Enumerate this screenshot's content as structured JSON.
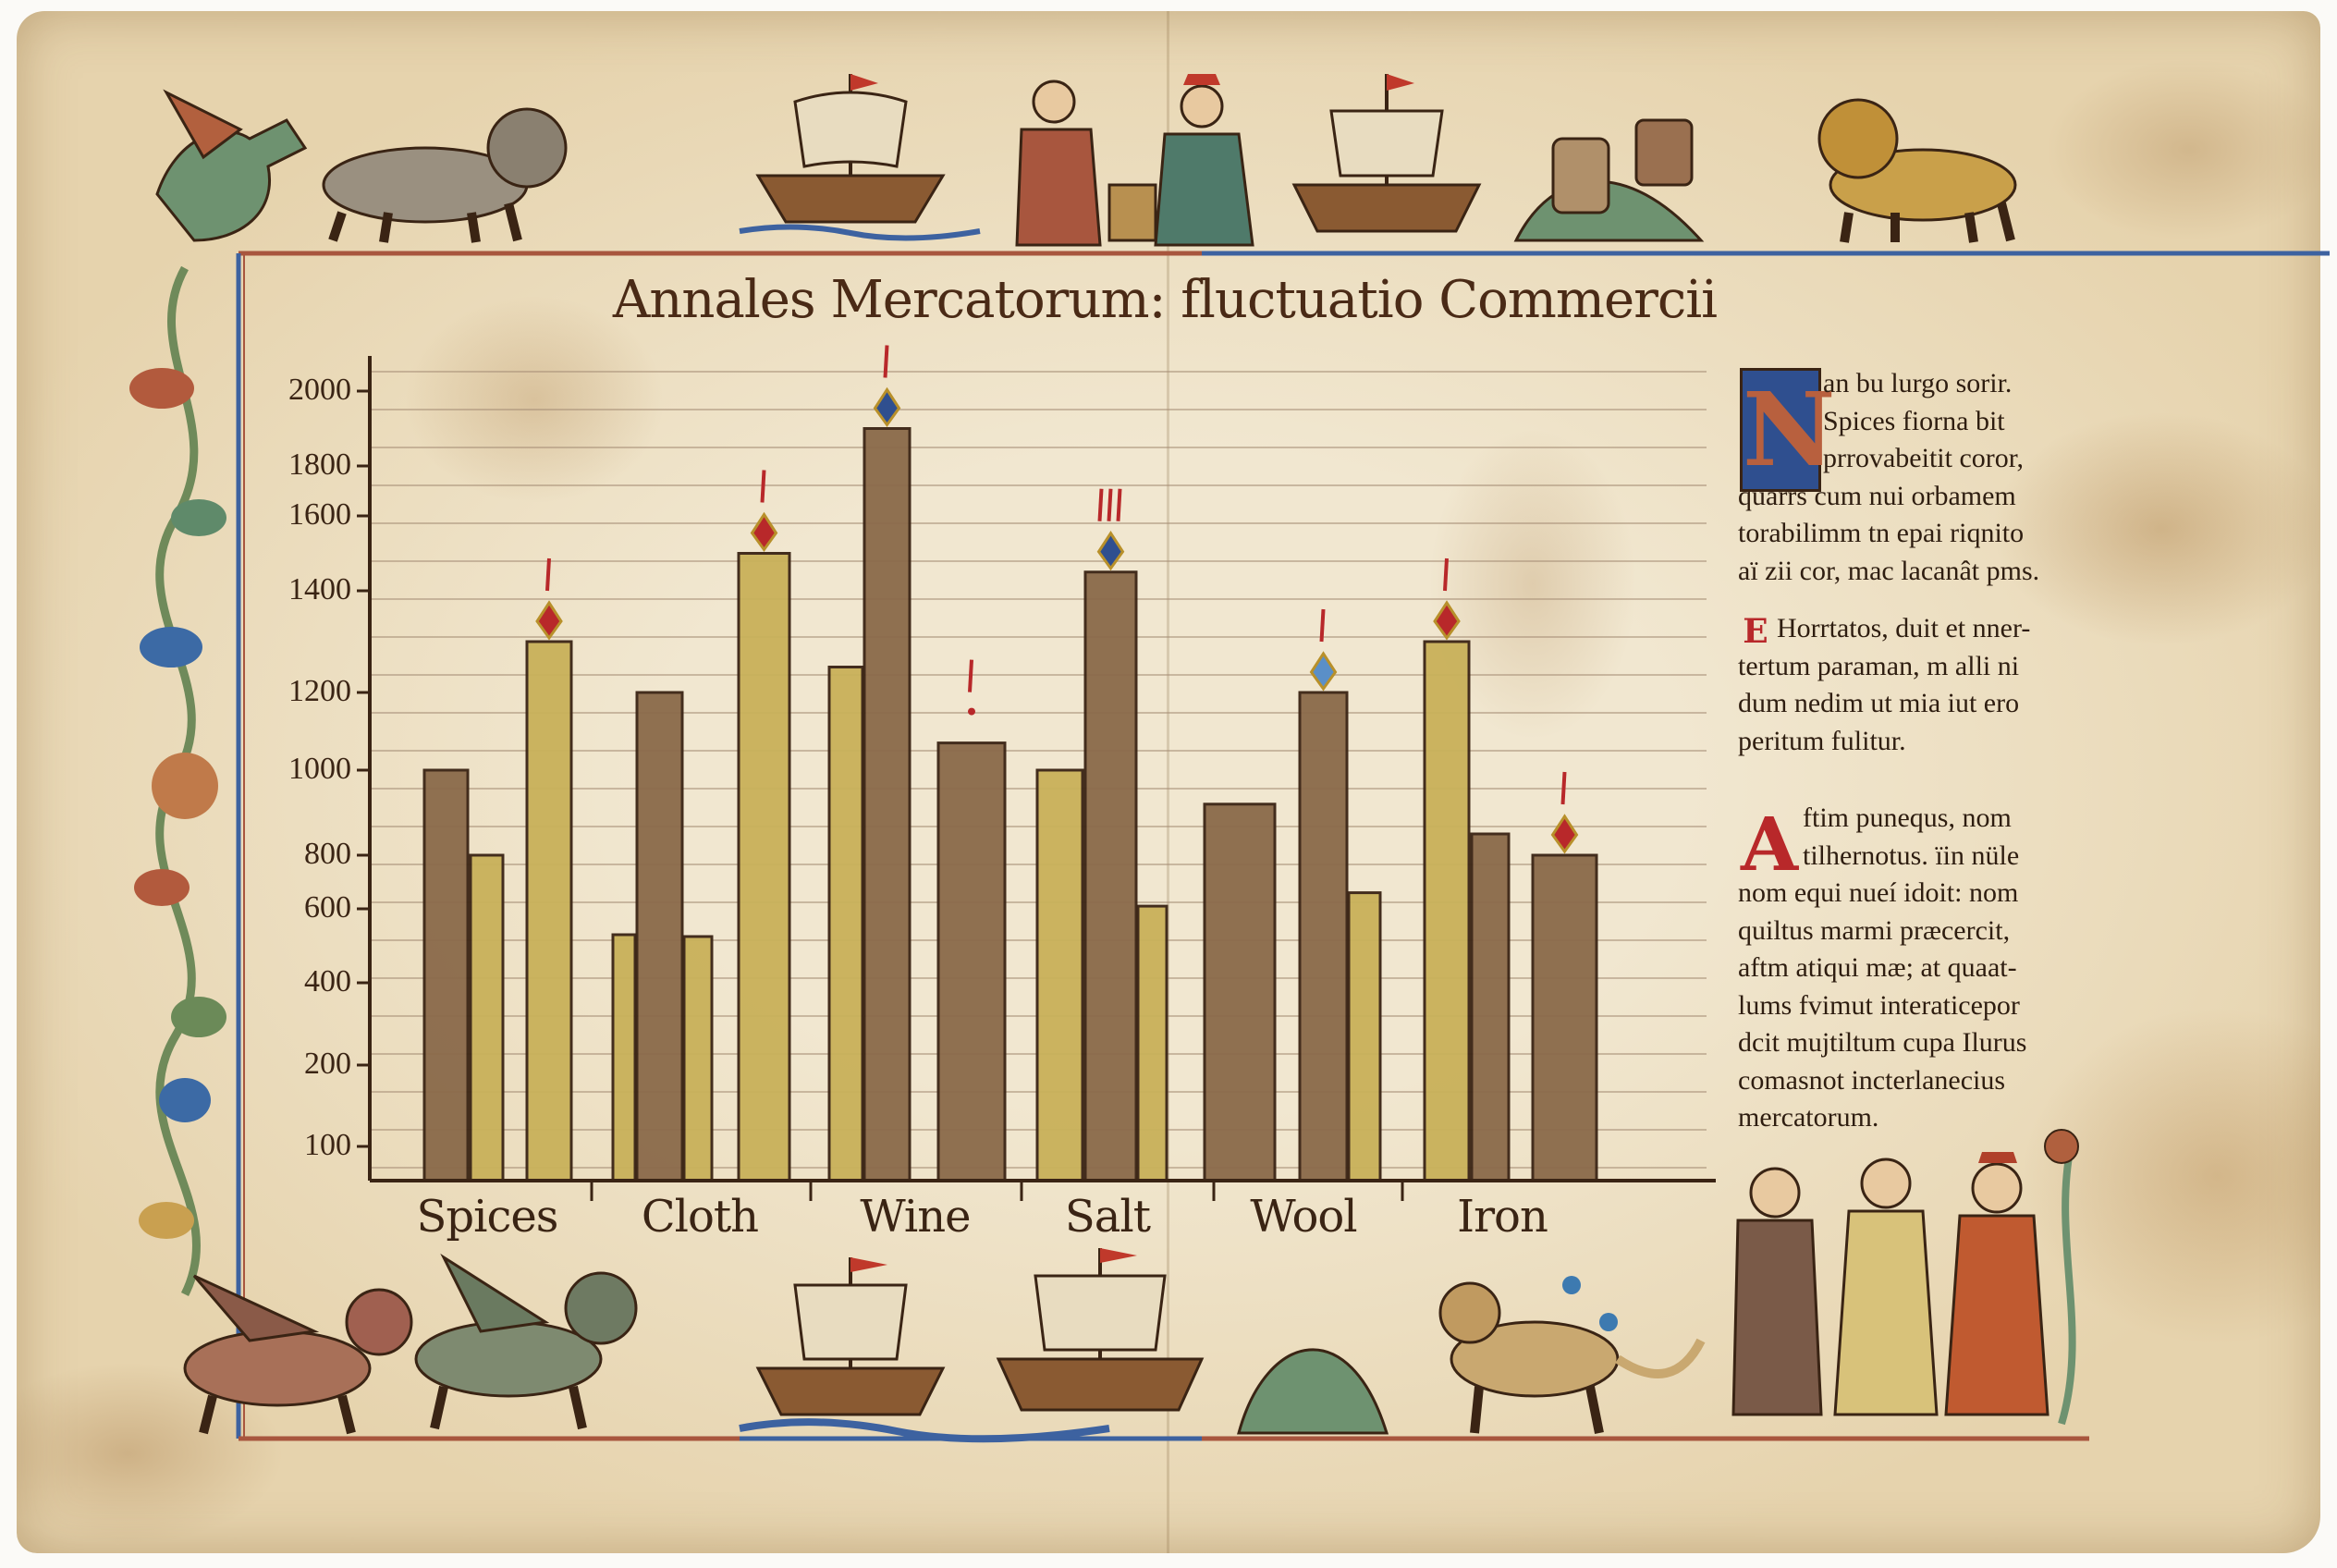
{
  "chart_data": {
    "type": "bar",
    "title": "Annales Mercatorum: fluctuatio Commercii",
    "xlabel": "",
    "ylabel": "",
    "categories": [
      "Spices",
      "Cloth",
      "Wine",
      "Salt",
      "Wool",
      "Iron"
    ],
    "y_ticks": [
      2000,
      1800,
      1600,
      1400,
      1200,
      1000,
      800,
      600,
      400,
      200,
      100
    ],
    "ylim": [
      0,
      2000
    ],
    "y_scale": "irregular tick spacing",
    "grid": "horizontal ruled lines",
    "legend": "none",
    "bars": [
      {
        "category": "Spices",
        "value": 1000,
        "color": "brown"
      },
      {
        "category": "Spices",
        "value": 800,
        "color": "gold"
      },
      {
        "category": "Spices",
        "value": 1300,
        "color": "gold",
        "marker": {
          "gem": "red",
          "strokes": 1
        }
      },
      {
        "category": "Cloth",
        "value": 530,
        "color": "gold"
      },
      {
        "category": "Cloth",
        "value": 1200,
        "color": "brown"
      },
      {
        "category": "Cloth",
        "value": 525,
        "color": "gold"
      },
      {
        "category": "Cloth",
        "value": 1500,
        "color": "gold",
        "marker": {
          "gem": "red",
          "strokes": 1
        }
      },
      {
        "category": "Wine",
        "value": 1250,
        "color": "gold"
      },
      {
        "category": "Wine",
        "value": 1900,
        "color": "brown",
        "marker": {
          "gem": "blue",
          "strokes": 1
        }
      },
      {
        "category": "Wine",
        "value": 1070,
        "color": "brown",
        "marker": {
          "gem": "none",
          "strokes": 1,
          "dot": true
        }
      },
      {
        "category": "Salt",
        "value": 1000,
        "color": "gold"
      },
      {
        "category": "Salt",
        "value": 1450,
        "color": "brown",
        "marker": {
          "gem": "blue",
          "strokes": 3
        }
      },
      {
        "category": "Salt",
        "value": 610,
        "color": "gold"
      },
      {
        "category": "Wool",
        "value": 920,
        "color": "brown"
      },
      {
        "category": "Wool",
        "value": 1200,
        "color": "brown",
        "marker": {
          "gem": "lightblue",
          "strokes": 1
        }
      },
      {
        "category": "Wool",
        "value": 660,
        "color": "gold"
      },
      {
        "category": "Iron",
        "value": 1300,
        "color": "gold",
        "marker": {
          "gem": "red",
          "strokes": 1
        }
      },
      {
        "category": "Iron",
        "value": 850,
        "color": "brown"
      },
      {
        "category": "Iron",
        "value": 800,
        "color": "brown",
        "marker": {
          "gem": "red",
          "strokes": 1
        }
      }
    ]
  },
  "colors": {
    "brown": "#8a6a4a",
    "gold": "#c9b15a",
    "ink": "#3a2414",
    "rubric_red": "#b8282a",
    "lapis_blue": "#2f4f8f",
    "frame_blue": "#3d62a0",
    "frame_red": "#a8563e"
  },
  "text_column": {
    "paragraphs": [
      {
        "dropcap": "N",
        "dropcap_color": "#2f4f8f",
        "lines": [
          "an bu lurgo sorir.",
          "Spices fiorna bit",
          "prrovabeitit coror,",
          "quarrs cum nui orbamem",
          "torabilimm tn epai riqnito",
          "aï zii cor, mac lacanât pms."
        ]
      },
      {
        "dropcap": "E",
        "dropcap_color": "#b8282a",
        "lines": [
          "Horrtatos, duit et nner-",
          "tertum paraman, m alli ni",
          "dum nedim ut mia iut ero",
          "peritum fulitur."
        ]
      },
      {
        "dropcap": "A",
        "dropcap_color": "#b8282a",
        "lines": [
          "ftim punequs, nom",
          "tilhernotus. ïin nüle",
          "nom equi nueí idoit: nom",
          "quiltus marmi præcercit,",
          "aftm atiqui mæ; at quaat-",
          "lums fvimut interaticepor",
          "dcit mujtiltum cupa Ilurus",
          "comasnot incterlanecius",
          "mercatorum."
        ]
      }
    ]
  },
  "illustrations": [
    "dragon-icon",
    "lion-icon",
    "ship-icon",
    "merchants-icon",
    "barrels-icon",
    "griffin-icon",
    "monks-icon",
    "vine-icon"
  ]
}
